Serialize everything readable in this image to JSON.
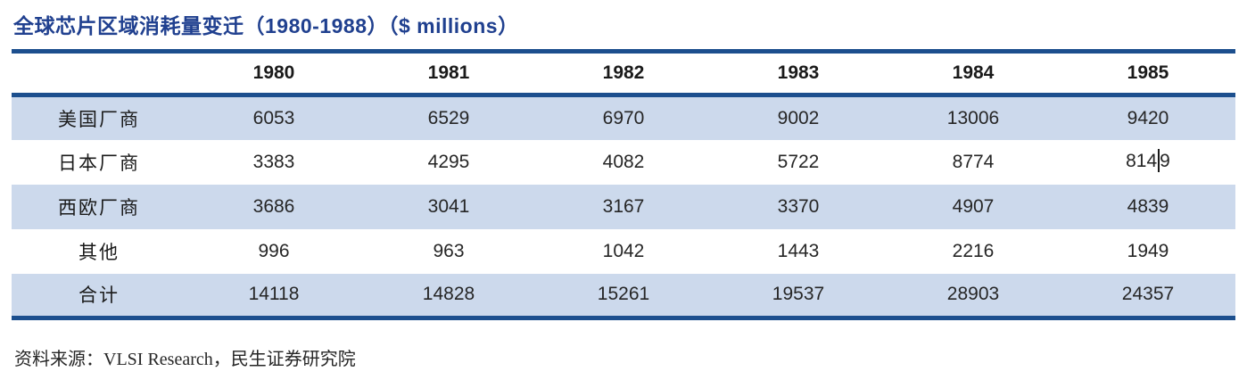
{
  "page": {
    "title": "全球芯片区域消耗量变迁（1980-1988）（$ millions）",
    "source_note": "资料来源：VLSI Research，民生证券研究院"
  },
  "table": {
    "columns": [
      "1980",
      "1981",
      "1982",
      "1983",
      "1984",
      "1985"
    ],
    "rows": [
      {
        "label": "美国厂商",
        "values": [
          6053,
          6529,
          6970,
          9002,
          13006,
          9420
        ]
      },
      {
        "label": "日本厂商",
        "values": [
          3383,
          4295,
          4082,
          5722,
          8774,
          8149
        ]
      },
      {
        "label": "西欧厂商",
        "values": [
          3686,
          3041,
          3167,
          3370,
          4907,
          4839
        ]
      },
      {
        "label": "其他",
        "values": [
          996,
          963,
          1042,
          1443,
          2216,
          1949
        ]
      },
      {
        "label": "合计",
        "values": [
          14118,
          14828,
          15261,
          19537,
          28903,
          24357
        ]
      }
    ],
    "caret": {
      "row": 1,
      "col": 5,
      "before": "814",
      "after": "9"
    }
  },
  "colors": {
    "accent_rule": "#1c4f8e",
    "row_shade": "#ccd9ec",
    "title_text": "#20408f"
  },
  "chart_data": {
    "type": "table",
    "title": "全球芯片区域消耗量变迁（1980-1988）（$ millions）",
    "unit": "$ millions",
    "categories": [
      "1980",
      "1981",
      "1982",
      "1983",
      "1984",
      "1985"
    ],
    "series": [
      {
        "name": "美国厂商",
        "values": [
          6053,
          6529,
          6970,
          9002,
          13006,
          9420
        ]
      },
      {
        "name": "日本厂商",
        "values": [
          3383,
          4295,
          4082,
          5722,
          8774,
          8149
        ]
      },
      {
        "name": "西欧厂商",
        "values": [
          3686,
          3041,
          3167,
          3370,
          4907,
          4839
        ]
      },
      {
        "name": "其他",
        "values": [
          996,
          963,
          1042,
          1443,
          2216,
          1949
        ]
      },
      {
        "name": "合计",
        "values": [
          14118,
          14828,
          15261,
          19537,
          28903,
          24357
        ]
      }
    ],
    "layout_hints": {
      "shaded_rows": [
        0,
        2,
        4
      ],
      "thick_rules": [
        "above header row",
        "below header row",
        "table bottom"
      ],
      "text_cursor_visible_in_cell": "日本厂商 / 1985 (8149)"
    },
    "source": "资料来源：VLSI Research，民生证券研究院"
  }
}
